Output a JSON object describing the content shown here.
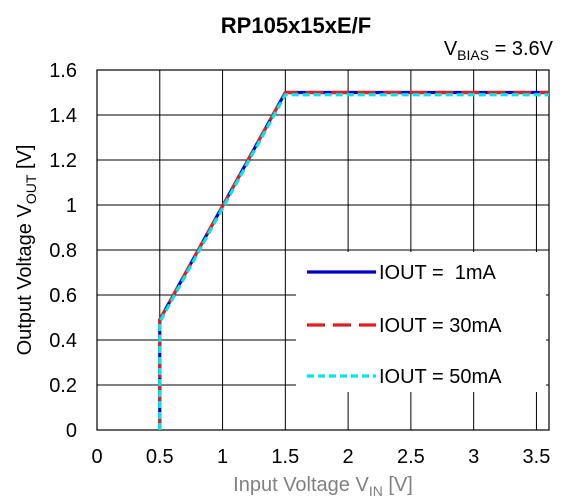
{
  "chart_data": {
    "type": "line",
    "title": "RP105x15xE/F",
    "annotation": {
      "main": "V",
      "sub": "BIAS",
      "rest": " = 3.6V"
    },
    "xlabel": {
      "main": "Input Voltage V",
      "sub": "IN",
      "rest": " [V]"
    },
    "ylabel": {
      "main": "Output Voltage V",
      "sub": "OUT",
      "rest": " [V]"
    },
    "xlim": [
      0,
      3.6
    ],
    "ylim": [
      0,
      1.6
    ],
    "xticks": [
      0,
      0.5,
      1,
      1.5,
      2,
      2.5,
      3,
      3.5
    ],
    "xtick_labels": [
      "0",
      "0.5",
      "1",
      "1.5",
      "2",
      "2.5",
      "3",
      "3.5"
    ],
    "yticks": [
      0,
      0.2,
      0.4,
      0.6,
      0.8,
      1,
      1.2,
      1.4,
      1.6
    ],
    "ytick_labels": [
      "0",
      "0.2",
      "0.4",
      "0.6",
      "0.8",
      "1",
      "1.2",
      "1.4",
      "1.6"
    ],
    "grid": true,
    "legend_position": "bottom-right",
    "series": [
      {
        "name": "IOUT =  1mA",
        "color": "#0000CC",
        "style": "solid",
        "x": [
          0.5,
          0.5,
          1.5,
          3.6
        ],
        "y": [
          0,
          0.49,
          1.5,
          1.5
        ]
      },
      {
        "name": "IOUT = 30mA",
        "color": "#E02020",
        "style": "dashed",
        "x": [
          0.5,
          0.5,
          1.5,
          3.6
        ],
        "y": [
          0,
          0.49,
          1.5,
          1.5
        ]
      },
      {
        "name": "IOUT = 50mA",
        "color": "#00E5EE",
        "style": "dotted",
        "x": [
          0.5,
          0.5,
          1.5,
          3.6
        ],
        "y": [
          0,
          0.48,
          1.49,
          1.49
        ]
      }
    ],
    "colors": {
      "grid": "#000000",
      "axis_label": "#808080",
      "ylabel": "#000000"
    }
  }
}
